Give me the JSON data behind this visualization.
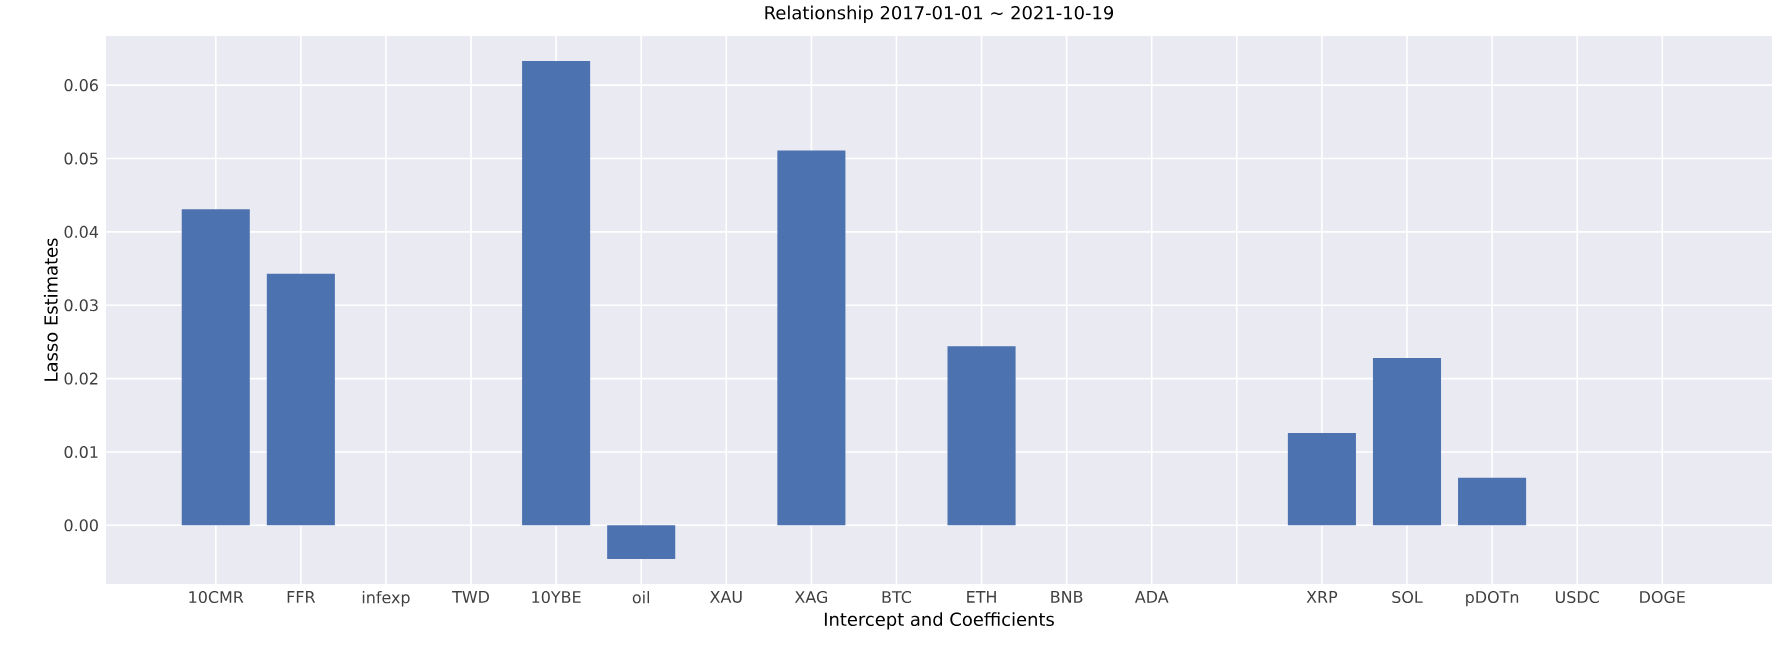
{
  "chart_data": {
    "type": "bar",
    "title": "Relationship 2017-01-01 ~ 2021-10-19",
    "xlabel": "Intercept and Coefficients",
    "ylabel": "Lasso Estimates",
    "categories": [
      "10CMR",
      "FFR",
      "infexp",
      "TWD",
      "10YBE",
      "oil",
      "XAU",
      "XAG",
      "BTC",
      "ETH",
      "BNB",
      "ADA",
      null,
      "XRP",
      "SOL",
      "pDOTn",
      "USDC",
      "DOGE"
    ],
    "values": [
      0.0431,
      0.0343,
      0,
      0,
      0.0633,
      -0.0046,
      0,
      0.0511,
      0,
      0.0244,
      0,
      0,
      0,
      0.0126,
      0.0228,
      0.0065,
      0,
      0
    ],
    "color": "#4c72b0",
    "ylim": [
      -0.008,
      0.0667
    ],
    "yticks": [
      {
        "value": 0,
        "label": "0.00"
      },
      {
        "value": 0.01,
        "label": "0.01"
      },
      {
        "value": 0.02,
        "label": "0.02"
      },
      {
        "value": 0.03,
        "label": "0.03"
      },
      {
        "value": 0.04,
        "label": "0.04"
      },
      {
        "value": 0.05,
        "label": "0.05"
      },
      {
        "value": 0.06,
        "label": "0.06"
      }
    ],
    "grid": true
  }
}
